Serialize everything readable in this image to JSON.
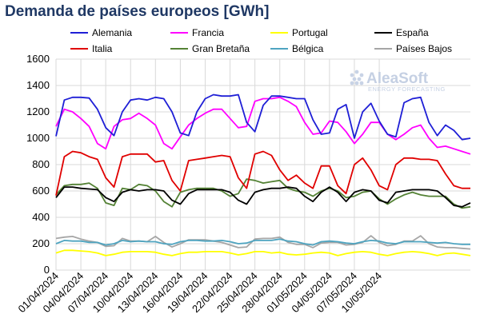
{
  "chart_data": {
    "type": "line",
    "title": "Demanda de países europeos [GWh]",
    "watermark": {
      "name": "AleaSoft",
      "tagline": "ENERGY FORECASTING"
    },
    "xlabel": "",
    "ylabel": "",
    "ylim": [
      0,
      1600
    ],
    "yticks": [
      0,
      200,
      400,
      600,
      800,
      1000,
      1200,
      1400,
      1600
    ],
    "grid": true,
    "legend_position": "top",
    "start_date": "2024-04-01",
    "x_tick_labels": [
      "01/04/2024",
      "04/04/2024",
      "07/04/2024",
      "10/04/2024",
      "13/04/2024",
      "16/04/2024",
      "19/04/2024",
      "22/04/2024",
      "25/04/2024",
      "28/04/2024",
      "01/05/2024",
      "04/05/2024",
      "07/05/2024",
      "10/05/2024"
    ],
    "series": [
      {
        "name": "Alemania",
        "color": "#1f1fd6",
        "values": [
          1015,
          1290,
          1310,
          1310,
          1305,
          1220,
          1080,
          1020,
          1200,
          1290,
          1300,
          1290,
          1310,
          1300,
          1200,
          1040,
          1020,
          1200,
          1300,
          1330,
          1320,
          1320,
          1330,
          1120,
          1050,
          1250,
          1320,
          1320,
          1310,
          1300,
          1300,
          1140,
          1030,
          1040,
          1220,
          1255,
          1000,
          1200,
          1265,
          1130,
          1030,
          1010,
          1270,
          1300,
          1310,
          1120,
          1020,
          1100,
          1060,
          990,
          1000
        ]
      },
      {
        "name": "Francia",
        "color": "#ff00ff",
        "values": [
          1090,
          1220,
          1200,
          1150,
          1090,
          960,
          920,
          1090,
          1140,
          1150,
          1190,
          1150,
          1100,
          960,
          920,
          1010,
          1100,
          1150,
          1190,
          1220,
          1220,
          1150,
          1080,
          1090,
          1280,
          1300,
          1300,
          1310,
          1280,
          1240,
          1120,
          1030,
          1040,
          1130,
          1120,
          1050,
          960,
          1030,
          1120,
          1120,
          1030,
          990,
          1030,
          1080,
          1100,
          1000,
          930,
          940,
          920,
          900,
          880
        ]
      },
      {
        "name": "Portugal",
        "color": "#ffff00",
        "values": [
          130,
          150,
          150,
          145,
          140,
          130,
          110,
          120,
          135,
          140,
          140,
          140,
          135,
          120,
          110,
          125,
          135,
          135,
          140,
          140,
          140,
          130,
          115,
          125,
          140,
          140,
          130,
          135,
          120,
          115,
          120,
          130,
          135,
          130,
          110,
          125,
          135,
          140,
          135,
          120,
          110,
          125,
          135,
          140,
          135,
          125,
          110,
          125,
          130,
          120,
          110
        ]
      },
      {
        "name": "España",
        "color": "#000000",
        "values": [
          550,
          630,
          630,
          620,
          615,
          610,
          550,
          520,
          590,
          610,
          600,
          610,
          610,
          600,
          530,
          500,
          580,
          610,
          610,
          610,
          610,
          590,
          530,
          500,
          590,
          610,
          620,
          620,
          630,
          620,
          560,
          520,
          590,
          630,
          590,
          520,
          590,
          610,
          600,
          530,
          510,
          590,
          600,
          610,
          610,
          610,
          600,
          550,
          490,
          480,
          510
        ]
      },
      {
        "name": "Italia",
        "color": "#e00000",
        "values": [
          565,
          860,
          900,
          890,
          860,
          840,
          700,
          630,
          860,
          880,
          880,
          880,
          820,
          830,
          680,
          600,
          830,
          840,
          850,
          860,
          870,
          860,
          700,
          620,
          880,
          900,
          870,
          760,
          680,
          720,
          660,
          620,
          790,
          790,
          640,
          580,
          800,
          850,
          760,
          640,
          610,
          800,
          850,
          850,
          840,
          840,
          830,
          730,
          640,
          620,
          620
        ]
      },
      {
        "name": "Gran Bretaña",
        "color": "#548235",
        "values": [
          570,
          640,
          650,
          650,
          660,
          620,
          510,
          490,
          620,
          610,
          650,
          640,
          600,
          520,
          480,
          590,
          610,
          620,
          620,
          620,
          600,
          560,
          580,
          690,
          680,
          660,
          670,
          680,
          620,
          600,
          590,
          560,
          600,
          620,
          600,
          550,
          560,
          590,
          600,
          540,
          500,
          540,
          570,
          590,
          570,
          560,
          560,
          560,
          500,
          470,
          480
        ]
      },
      {
        "name": "Bélgica",
        "color": "#4ea4c0",
        "values": [
          200,
          225,
          220,
          220,
          210,
          210,
          190,
          200,
          225,
          215,
          220,
          215,
          215,
          200,
          195,
          215,
          225,
          225,
          220,
          220,
          225,
          215,
          200,
          205,
          225,
          225,
          225,
          235,
          220,
          215,
          200,
          190,
          215,
          220,
          215,
          205,
          200,
          215,
          225,
          220,
          205,
          200,
          215,
          215,
          215,
          210,
          205,
          210,
          200,
          195,
          195
        ]
      },
      {
        "name": "Países Bajos",
        "color": "#a6a6a6",
        "values": [
          240,
          250,
          255,
          235,
          220,
          210,
          180,
          185,
          240,
          220,
          220,
          215,
          255,
          210,
          175,
          200,
          230,
          230,
          230,
          220,
          210,
          190,
          170,
          175,
          235,
          240,
          240,
          250,
          210,
          195,
          195,
          170,
          205,
          210,
          210,
          190,
          195,
          210,
          260,
          210,
          185,
          195,
          220,
          220,
          260,
          200,
          175,
          170,
          170,
          165,
          160
        ]
      }
    ]
  }
}
